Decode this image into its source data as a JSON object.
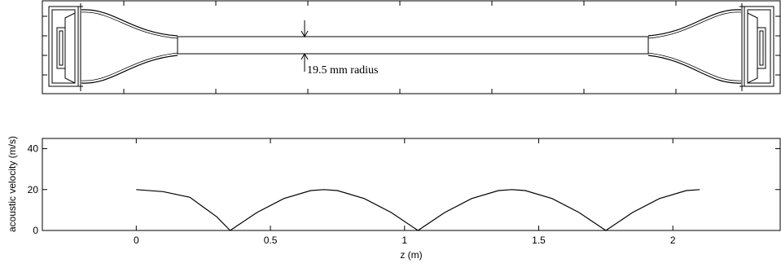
{
  "diagram": {
    "annotation": "19.5 mm radius"
  },
  "chart_data": {
    "type": "line",
    "title": "",
    "xlabel": "z (m)",
    "ylabel": "acoustic velocity (m/s)",
    "xlim": [
      -0.35,
      2.4
    ],
    "ylim": [
      0,
      45
    ],
    "xticks": [
      0,
      0.5,
      1,
      1.5,
      2
    ],
    "xtick_labels": [
      "0",
      "0.5",
      "1",
      "1.5",
      "2"
    ],
    "yticks": [
      0,
      20,
      40
    ],
    "ytick_labels": [
      "0",
      "20",
      "40"
    ],
    "grid": false,
    "legend": "none",
    "series": [
      {
        "color": "#000000",
        "x": [
          0,
          0.1,
          0.2,
          0.3,
          0.35,
          0.45,
          0.55,
          0.65,
          0.7,
          0.75,
          0.85,
          0.95,
          1.05,
          1.15,
          1.25,
          1.35,
          1.4,
          1.45,
          1.55,
          1.65,
          1.75,
          1.85,
          1.95,
          2.05,
          2.1
        ],
        "y": [
          20,
          19.0,
          16.2,
          6.7,
          0,
          8.8,
          15.6,
          19.5,
          20,
          19.5,
          15.6,
          8.8,
          0,
          8.8,
          15.6,
          19.5,
          20,
          19.5,
          15.6,
          8.8,
          0,
          8.8,
          15.6,
          19.5,
          20
        ]
      }
    ]
  }
}
